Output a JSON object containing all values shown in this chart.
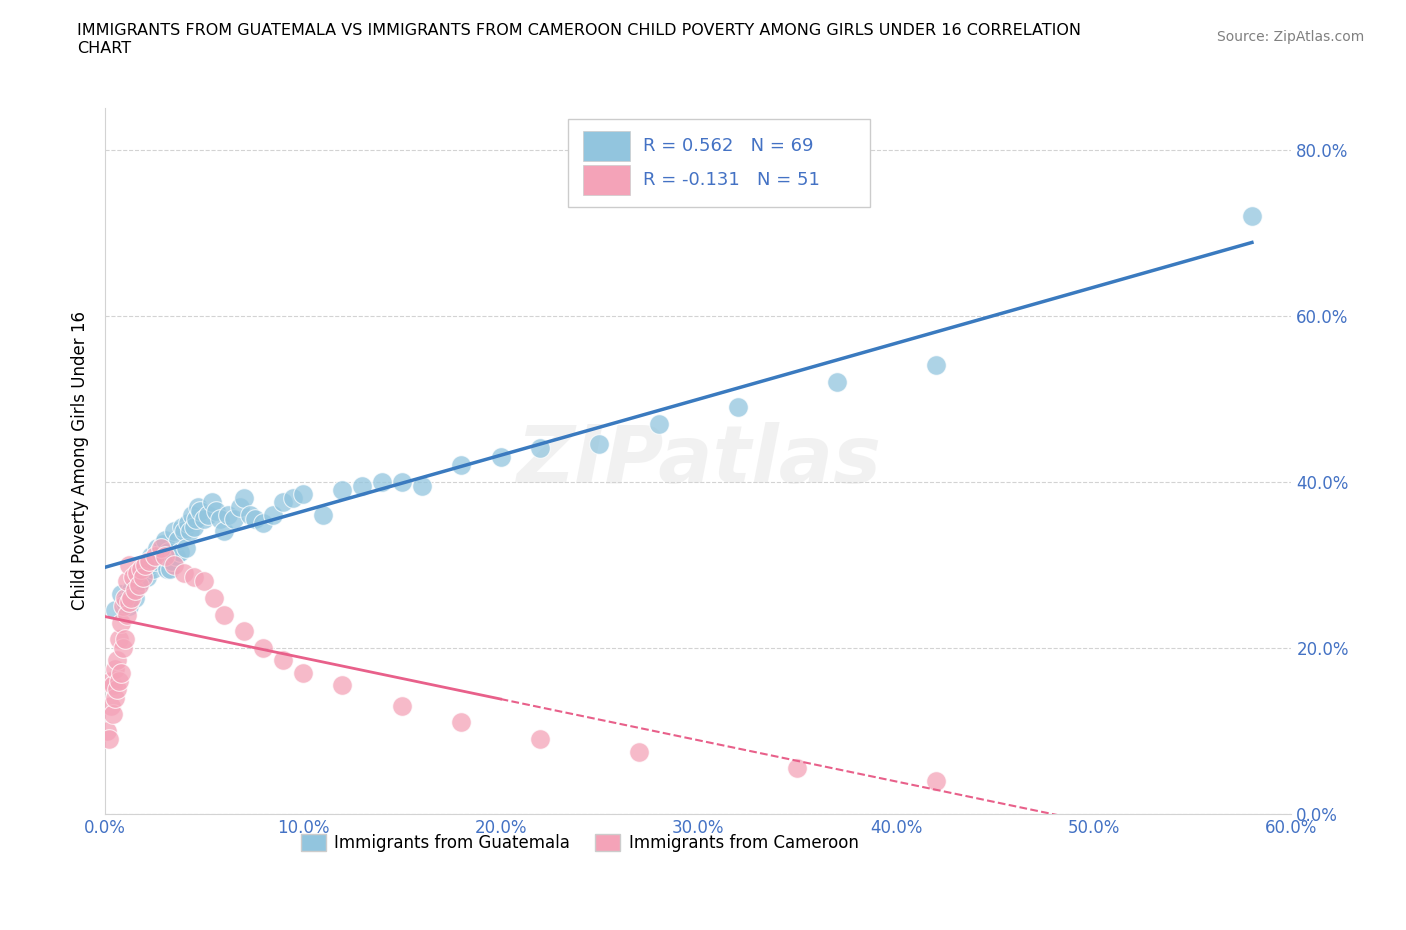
{
  "title": "IMMIGRANTS FROM GUATEMALA VS IMMIGRANTS FROM CAMEROON CHILD POVERTY AMONG GIRLS UNDER 16 CORRELATION\nCHART",
  "source_text": "Source: ZipAtlas.com",
  "xlabel_ticks": [
    "0.0%",
    "10.0%",
    "20.0%",
    "30.0%",
    "40.0%",
    "50.0%",
    "60.0%"
  ],
  "ylabel_ticks": [
    "0.0%",
    "20.0%",
    "40.0%",
    "60.0%",
    "80.0%"
  ],
  "ylabel_label": "Child Poverty Among Girls Under 16",
  "watermark": "ZIPatlas",
  "blue_color": "#92c5de",
  "pink_color": "#f4a3b8",
  "blue_line_color": "#3a7abf",
  "pink_line_color": "#e8608a",
  "R_blue": 0.562,
  "N_blue": 69,
  "R_pink": -0.131,
  "N_pink": 51,
  "legend1_label": "Immigrants from Guatemala",
  "legend2_label": "Immigrants from Cameroon",
  "blue_scatter_x": [
    0.005,
    0.008,
    0.01,
    0.012,
    0.013,
    0.015,
    0.017,
    0.018,
    0.02,
    0.021,
    0.022,
    0.023,
    0.024,
    0.025,
    0.026,
    0.027,
    0.028,
    0.029,
    0.03,
    0.031,
    0.032,
    0.033,
    0.034,
    0.035,
    0.036,
    0.037,
    0.038,
    0.039,
    0.04,
    0.041,
    0.042,
    0.043,
    0.044,
    0.045,
    0.046,
    0.047,
    0.048,
    0.05,
    0.052,
    0.054,
    0.056,
    0.058,
    0.06,
    0.062,
    0.065,
    0.068,
    0.07,
    0.073,
    0.076,
    0.08,
    0.085,
    0.09,
    0.095,
    0.1,
    0.11,
    0.12,
    0.13,
    0.14,
    0.15,
    0.16,
    0.18,
    0.2,
    0.22,
    0.25,
    0.28,
    0.32,
    0.37,
    0.42,
    0.58
  ],
  "blue_scatter_y": [
    0.245,
    0.265,
    0.255,
    0.25,
    0.27,
    0.26,
    0.275,
    0.28,
    0.29,
    0.285,
    0.3,
    0.31,
    0.295,
    0.305,
    0.32,
    0.315,
    0.31,
    0.325,
    0.33,
    0.295,
    0.315,
    0.295,
    0.305,
    0.34,
    0.31,
    0.33,
    0.315,
    0.345,
    0.34,
    0.32,
    0.35,
    0.34,
    0.36,
    0.345,
    0.355,
    0.37,
    0.365,
    0.355,
    0.36,
    0.375,
    0.365,
    0.355,
    0.34,
    0.36,
    0.355,
    0.37,
    0.38,
    0.36,
    0.355,
    0.35,
    0.36,
    0.375,
    0.38,
    0.385,
    0.36,
    0.39,
    0.395,
    0.4,
    0.4,
    0.395,
    0.42,
    0.43,
    0.44,
    0.445,
    0.47,
    0.49,
    0.52,
    0.54,
    0.72
  ],
  "pink_scatter_x": [
    0.001,
    0.002,
    0.003,
    0.003,
    0.004,
    0.004,
    0.005,
    0.005,
    0.006,
    0.006,
    0.007,
    0.007,
    0.008,
    0.008,
    0.009,
    0.009,
    0.01,
    0.01,
    0.011,
    0.011,
    0.012,
    0.012,
    0.013,
    0.014,
    0.015,
    0.016,
    0.017,
    0.018,
    0.019,
    0.02,
    0.022,
    0.025,
    0.028,
    0.03,
    0.035,
    0.04,
    0.045,
    0.05,
    0.055,
    0.06,
    0.07,
    0.08,
    0.09,
    0.1,
    0.12,
    0.15,
    0.18,
    0.22,
    0.27,
    0.35,
    0.42
  ],
  "pink_scatter_y": [
    0.1,
    0.09,
    0.13,
    0.16,
    0.12,
    0.155,
    0.14,
    0.175,
    0.15,
    0.185,
    0.16,
    0.21,
    0.17,
    0.23,
    0.2,
    0.25,
    0.21,
    0.26,
    0.24,
    0.28,
    0.255,
    0.3,
    0.26,
    0.285,
    0.27,
    0.29,
    0.275,
    0.295,
    0.285,
    0.3,
    0.305,
    0.31,
    0.32,
    0.31,
    0.3,
    0.29,
    0.285,
    0.28,
    0.26,
    0.24,
    0.22,
    0.2,
    0.185,
    0.17,
    0.155,
    0.13,
    0.11,
    0.09,
    0.075,
    0.055,
    0.04
  ],
  "xlim": [
    0.0,
    0.6
  ],
  "ylim": [
    0.0,
    0.85
  ],
  "xtick_vals": [
    0.0,
    0.1,
    0.2,
    0.3,
    0.4,
    0.5,
    0.6
  ],
  "ytick_vals": [
    0.0,
    0.2,
    0.4,
    0.6,
    0.8
  ],
  "figsize": [
    14.06,
    9.3
  ],
  "dpi": 100
}
